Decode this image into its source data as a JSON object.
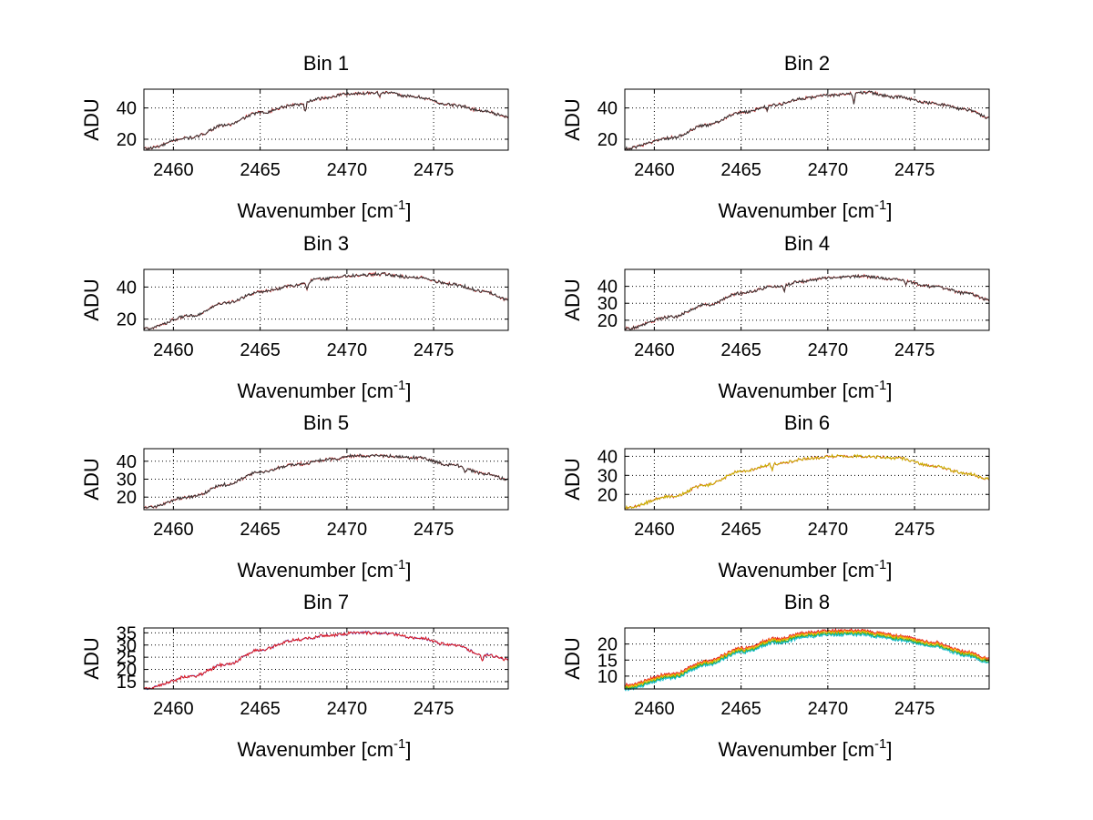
{
  "figure": {
    "background": "#ffffff"
  },
  "chart_data": [
    {
      "type": "line",
      "title": "Bin 1",
      "xlabel": "Wavenumber [cm",
      "xlabel_sup": "-1",
      "xlabel_end": "]",
      "ylabel": "ADU",
      "xlim": [
        2458.3,
        2479.3
      ],
      "ylim": [
        13,
        52
      ],
      "xticks": [
        2460,
        2465,
        2470,
        2475
      ],
      "yticks": [
        20,
        40
      ],
      "grid": true,
      "anchors": [
        [
          2458.3,
          14
        ],
        [
          2461,
          21
        ],
        [
          2463,
          29
        ],
        [
          2465,
          37
        ],
        [
          2467,
          42
        ],
        [
          2468.5,
          46
        ],
        [
          2470,
          49
        ],
        [
          2472,
          50
        ],
        [
          2474,
          47
        ],
        [
          2476,
          42
        ],
        [
          2478,
          38
        ],
        [
          2479.3,
          34
        ]
      ],
      "dips": [
        [
          2467.6,
          6
        ],
        [
          2471.9,
          3
        ]
      ],
      "series": [
        {
          "name": "red",
          "color": "#e31a1c"
        },
        {
          "name": "dark",
          "color": "#333333"
        }
      ]
    },
    {
      "type": "line",
      "title": "Bin 2",
      "xlabel": "Wavenumber [cm",
      "xlabel_sup": "-1",
      "xlabel_end": "]",
      "ylabel": "ADU",
      "xlim": [
        2458.3,
        2479.3
      ],
      "ylim": [
        13,
        52
      ],
      "xticks": [
        2460,
        2465,
        2470,
        2475
      ],
      "yticks": [
        20,
        40
      ],
      "grid": true,
      "anchors": [
        [
          2458.3,
          14
        ],
        [
          2461,
          21
        ],
        [
          2463,
          29
        ],
        [
          2465,
          37
        ],
        [
          2467,
          42
        ],
        [
          2468.5,
          46
        ],
        [
          2470,
          48
        ],
        [
          2472,
          50
        ],
        [
          2474,
          47
        ],
        [
          2476,
          43
        ],
        [
          2478,
          39
        ],
        [
          2479.3,
          34
        ]
      ],
      "dips": [
        [
          2471.5,
          7
        ],
        [
          2466.5,
          3
        ]
      ],
      "series": [
        {
          "name": "red",
          "color": "#e31a1c"
        },
        {
          "name": "dark",
          "color": "#333333"
        }
      ]
    },
    {
      "type": "line",
      "title": "Bin 3",
      "xlabel": "Wavenumber [cm",
      "xlabel_sup": "-1",
      "xlabel_end": "]",
      "ylabel": "ADU",
      "xlim": [
        2458.3,
        2479.3
      ],
      "ylim": [
        13,
        51
      ],
      "xticks": [
        2460,
        2465,
        2470,
        2475
      ],
      "yticks": [
        20,
        40
      ],
      "grid": true,
      "anchors": [
        [
          2458.3,
          14
        ],
        [
          2461,
          22
        ],
        [
          2463,
          30
        ],
        [
          2465,
          37
        ],
        [
          2467,
          41
        ],
        [
          2468.5,
          45
        ],
        [
          2470,
          47
        ],
        [
          2472,
          48
        ],
        [
          2474,
          46
        ],
        [
          2476,
          42
        ],
        [
          2478,
          37
        ],
        [
          2479.3,
          32
        ]
      ],
      "dips": [
        [
          2467.7,
          5
        ]
      ],
      "series": [
        {
          "name": "red",
          "color": "#e31a1c"
        },
        {
          "name": "dark",
          "color": "#333333"
        }
      ]
    },
    {
      "type": "line",
      "title": "Bin 4",
      "xlabel": "Wavenumber [cm",
      "xlabel_sup": "-1",
      "xlabel_end": "]",
      "ylabel": "ADU",
      "xlim": [
        2458.3,
        2479.3
      ],
      "ylim": [
        14,
        50
      ],
      "xticks": [
        2460,
        2465,
        2470,
        2475
      ],
      "yticks": [
        20,
        30,
        40
      ],
      "grid": true,
      "anchors": [
        [
          2458.3,
          15
        ],
        [
          2461,
          22
        ],
        [
          2463,
          29
        ],
        [
          2465,
          36
        ],
        [
          2467,
          40
        ],
        [
          2468.5,
          43
        ],
        [
          2470,
          45
        ],
        [
          2472,
          46
        ],
        [
          2474,
          44
        ],
        [
          2476,
          40
        ],
        [
          2478,
          36
        ],
        [
          2479.3,
          32
        ]
      ],
      "dips": [
        [
          2467.5,
          4
        ],
        [
          2474.5,
          3
        ]
      ],
      "series": [
        {
          "name": "red",
          "color": "#e31a1c"
        },
        {
          "name": "dark",
          "color": "#333333"
        }
      ]
    },
    {
      "type": "line",
      "title": "Bin 5",
      "xlabel": "Wavenumber [cm",
      "xlabel_sup": "-1",
      "xlabel_end": "]",
      "ylabel": "ADU",
      "xlim": [
        2458.3,
        2479.3
      ],
      "ylim": [
        13,
        47
      ],
      "xticks": [
        2460,
        2465,
        2470,
        2475
      ],
      "yticks": [
        20,
        30,
        40
      ],
      "grid": true,
      "anchors": [
        [
          2458.3,
          14
        ],
        [
          2461,
          20
        ],
        [
          2463,
          27
        ],
        [
          2465,
          34
        ],
        [
          2467,
          38
        ],
        [
          2469,
          41
        ],
        [
          2470.5,
          43
        ],
        [
          2472,
          43
        ],
        [
          2474,
          42
        ],
        [
          2476,
          38
        ],
        [
          2478,
          33
        ],
        [
          2479.3,
          30
        ]
      ],
      "dips": [
        [
          2476.8,
          3
        ]
      ],
      "series": [
        {
          "name": "red",
          "color": "#e31a1c"
        },
        {
          "name": "dark",
          "color": "#333333"
        }
      ]
    },
    {
      "type": "line",
      "title": "Bin 6",
      "xlabel": "Wavenumber [cm",
      "xlabel_sup": "-1",
      "xlabel_end": "]",
      "ylabel": "ADU",
      "xlim": [
        2458.3,
        2479.3
      ],
      "ylim": [
        12,
        44
      ],
      "xticks": [
        2460,
        2465,
        2470,
        2475
      ],
      "yticks": [
        20,
        30,
        40
      ],
      "grid": true,
      "anchors": [
        [
          2458.3,
          13
        ],
        [
          2461,
          19
        ],
        [
          2463,
          25
        ],
        [
          2465,
          32
        ],
        [
          2467,
          36
        ],
        [
          2469,
          39
        ],
        [
          2470.5,
          40
        ],
        [
          2472,
          40
        ],
        [
          2474,
          39
        ],
        [
          2476,
          35
        ],
        [
          2478,
          31
        ],
        [
          2479.3,
          28
        ]
      ],
      "dips": [
        [
          2466.8,
          3
        ]
      ],
      "series": [
        {
          "name": "red",
          "color": "#e31a1c"
        },
        {
          "name": "yellow",
          "color": "#c8b400"
        }
      ]
    },
    {
      "type": "line",
      "title": "Bin 7",
      "xlabel": "Wavenumber [cm",
      "xlabel_sup": "-1",
      "xlabel_end": "]",
      "ylabel": "ADU",
      "xlim": [
        2458.3,
        2479.3
      ],
      "ylim": [
        12,
        37
      ],
      "xticks": [
        2460,
        2465,
        2470,
        2475
      ],
      "yticks": [
        15,
        20,
        25,
        30,
        35
      ],
      "ytick_labels": [
        "15",
        "20",
        "25",
        "30",
        "35"
      ],
      "grid": true,
      "anchors": [
        [
          2458.3,
          12
        ],
        [
          2461,
          17
        ],
        [
          2463,
          22
        ],
        [
          2465,
          28
        ],
        [
          2467,
          32
        ],
        [
          2469,
          34
        ],
        [
          2470.5,
          35
        ],
        [
          2472,
          35
        ],
        [
          2474,
          33
        ],
        [
          2476,
          30
        ],
        [
          2478,
          26
        ],
        [
          2479.3,
          24
        ]
      ],
      "dips": [
        [
          2477.8,
          3
        ]
      ],
      "series": [
        {
          "name": "blue",
          "color": "#2b3bd8"
        },
        {
          "name": "red",
          "color": "#e31a1c"
        }
      ]
    },
    {
      "type": "line",
      "title": "Bin 8",
      "xlabel": "Wavenumber [cm",
      "xlabel_sup": "-1",
      "xlabel_end": "]",
      "ylabel": "ADU",
      "xlim": [
        2458.3,
        2479.3
      ],
      "ylim": [
        6,
        25
      ],
      "xticks": [
        2460,
        2465,
        2470,
        2475
      ],
      "yticks": [
        10,
        15,
        20
      ],
      "grid": true,
      "anchors": [
        [
          2458.3,
          6.5
        ],
        [
          2461,
          10
        ],
        [
          2463,
          14
        ],
        [
          2465,
          18
        ],
        [
          2467,
          21
        ],
        [
          2469,
          23
        ],
        [
          2470.5,
          23.5
        ],
        [
          2472,
          23.5
        ],
        [
          2474,
          22
        ],
        [
          2476,
          20
        ],
        [
          2478,
          17
        ],
        [
          2479.3,
          15
        ]
      ],
      "dips": [],
      "series": [
        {
          "name": "red",
          "color": "#e31a1c"
        },
        {
          "name": "orange",
          "color": "#ff8c00"
        },
        {
          "name": "yellow",
          "color": "#d4c400"
        },
        {
          "name": "green",
          "color": "#29a329"
        },
        {
          "name": "cyan",
          "color": "#17becf"
        }
      ]
    }
  ]
}
